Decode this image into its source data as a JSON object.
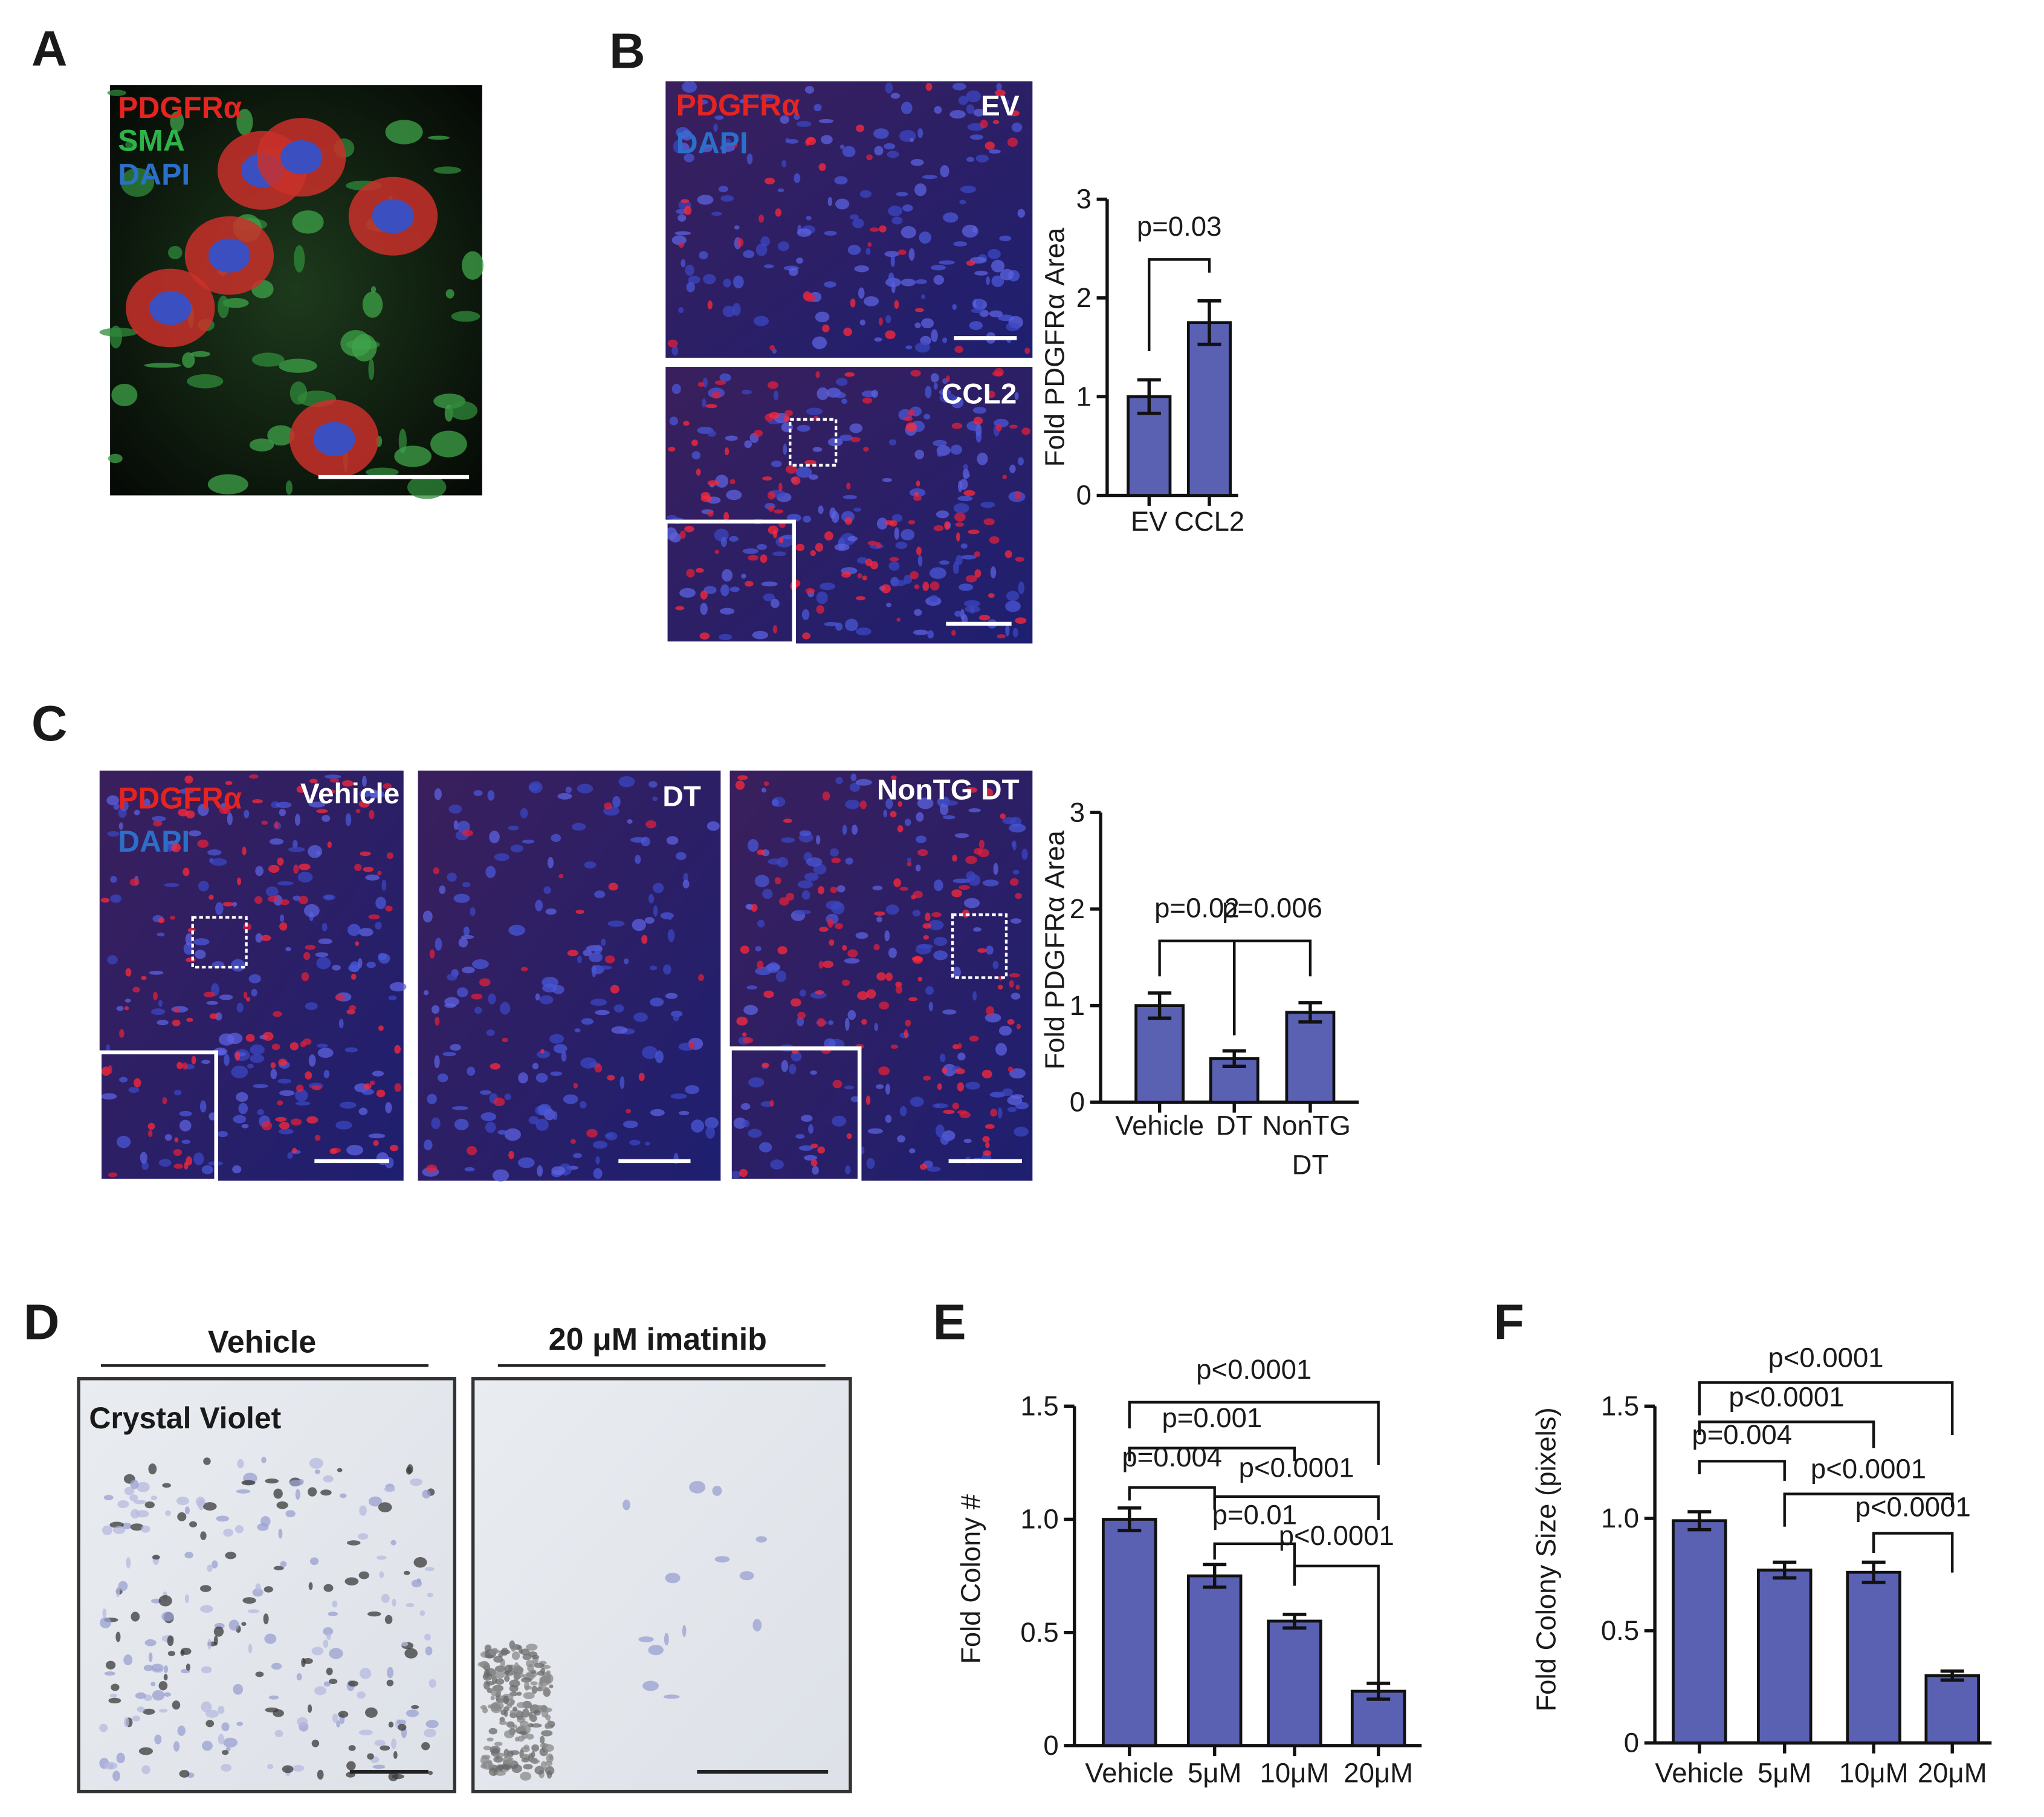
{
  "figure": {
    "panel_a": {
      "letter": "A",
      "channels": [
        "PDGFRα",
        "SMA",
        "DAPI"
      ]
    },
    "panel_b": {
      "letter": "B",
      "channels": [
        "PDGFRα",
        "DAPI"
      ],
      "images": [
        "EV",
        "CCL2"
      ]
    },
    "panel_c": {
      "letter": "C",
      "channels": [
        "PDGFRα",
        "DAPI"
      ],
      "images": [
        "Vehicle",
        "DT",
        "NonTG DT"
      ]
    },
    "panel_d": {
      "letter": "D",
      "conditions": [
        "Vehicle",
        "20 μM imatinib"
      ],
      "stain": "Crystal Violet"
    },
    "panel_e": {
      "letter": "E"
    },
    "panel_f": {
      "letter": "F"
    }
  },
  "chart_data": [
    {
      "type": "bar",
      "y_label": "Fold PDGFRα Area",
      "categories": [
        "EV",
        "CCL2"
      ],
      "values": [
        1.0,
        1.75
      ],
      "errors": [
        0.17,
        0.22
      ],
      "color": "#5a61b3",
      "ylim": [
        0,
        3
      ],
      "yticks": [
        0,
        1,
        2,
        3
      ],
      "grid": false,
      "annotations": [
        {
          "text": "p=0.03",
          "between": [
            "EV",
            "CCL2"
          ]
        }
      ]
    },
    {
      "type": "bar",
      "y_label": "Fold PDGFRα Area",
      "categories": [
        "Vehicle",
        "DT",
        "NonTG DT"
      ],
      "values": [
        1.0,
        0.45,
        0.93
      ],
      "errors": [
        0.13,
        0.08,
        0.1
      ],
      "color": "#5a61b3",
      "ylim": [
        0,
        3
      ],
      "yticks": [
        0,
        1,
        2,
        3
      ],
      "grid": false,
      "annotations": [
        {
          "text": "p=0.02",
          "between": [
            "Vehicle",
            "DT"
          ]
        },
        {
          "text": "p=0.006",
          "between": [
            "DT",
            "NonTG DT"
          ]
        }
      ]
    },
    {
      "type": "bar",
      "y_label": "Fold Colony #",
      "categories": [
        "Vehicle",
        "5μM",
        "10μM",
        "20μM"
      ],
      "values": [
        1.0,
        0.75,
        0.55,
        0.24
      ],
      "errors": [
        0.05,
        0.05,
        0.03,
        0.035
      ],
      "color": "#5a61b3",
      "ylim": [
        0,
        1.5
      ],
      "yticks": [
        0,
        0.5,
        {
          "value": 1,
          "label": "1.0"
        },
        1.5
      ],
      "grid": false,
      "annotations": [
        {
          "text": "p<0.0001",
          "between": [
            "Vehicle",
            "20μM"
          ]
        },
        {
          "text": "p=0.001",
          "between": [
            "Vehicle",
            "10μM"
          ]
        },
        {
          "text": "p=0.004",
          "between": [
            "Vehicle",
            "5μM"
          ]
        },
        {
          "text": "p<0.0001",
          "between": [
            "5μM",
            "20μM"
          ]
        },
        {
          "text": "p=0.01",
          "between": [
            "5μM",
            "10μM"
          ]
        },
        {
          "text": "p<0.0001",
          "between": [
            "10μM",
            "20μM"
          ]
        }
      ]
    },
    {
      "type": "bar",
      "y_label": "Fold Colony Size (pixels)",
      "categories": [
        "Vehicle",
        "5μM",
        "10μM",
        "20μM"
      ],
      "values": [
        0.99,
        0.77,
        0.76,
        0.3
      ],
      "errors": [
        0.04,
        0.035,
        0.045,
        0.02
      ],
      "color": "#5a61b3",
      "ylim": [
        0,
        1.5
      ],
      "yticks": [
        0,
        0.5,
        {
          "value": 1,
          "label": "1.0"
        },
        1.5
      ],
      "grid": false,
      "annotations": [
        {
          "text": "p<0.0001",
          "between": [
            "Vehicle",
            "20μM"
          ]
        },
        {
          "text": "p<0.0001",
          "between": [
            "Vehicle",
            "10μM"
          ]
        },
        {
          "text": "p=0.004",
          "between": [
            "Vehicle",
            "5μM"
          ]
        },
        {
          "text": "p<0.0001",
          "between": [
            "5μM",
            "20μM"
          ]
        },
        {
          "text": "p<0.0001",
          "between": [
            "10μM",
            "20μM"
          ]
        }
      ]
    }
  ]
}
